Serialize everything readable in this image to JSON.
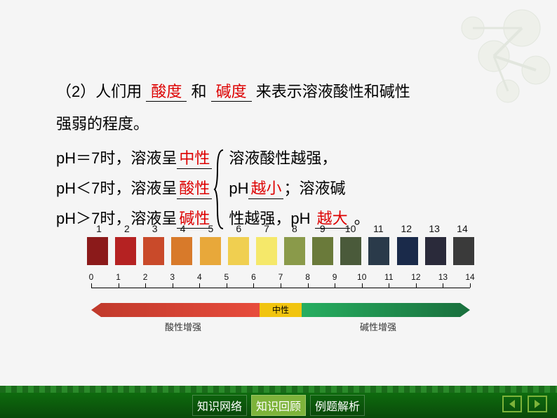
{
  "content": {
    "line1_prefix": "（2）人们用",
    "line1_blank1": "酸度",
    "line1_mid": "和",
    "line1_blank2": "碱度",
    "line1_suffix": "来表示溶液酸性和碱性",
    "line2": "强弱的程度。",
    "ph_rows": [
      {
        "label": "pH＝7时，溶液呈",
        "value": "中性"
      },
      {
        "label": "pH＜7时，溶液呈",
        "value": "酸性"
      },
      {
        "label": "pH＞7时，溶液呈",
        "value": "碱性"
      }
    ],
    "right_text1": "溶液酸性越强，",
    "right_text2a": "pH",
    "right_blank1": "越小",
    "right_text2b": "；溶液碱",
    "right_text3a": "性越强，pH",
    "right_blank2": "越大",
    "right_text3b": "。"
  },
  "chart": {
    "swatch_numbers": [
      "1",
      "2",
      "3",
      "4",
      "5",
      "6",
      "7",
      "8",
      "9",
      "10",
      "11",
      "12",
      "13",
      "14"
    ],
    "swatch_colors": [
      "#8b1a1a",
      "#b52222",
      "#c94a2a",
      "#d87a2a",
      "#e8a83a",
      "#f0cf50",
      "#f5e86a",
      "#8a9a4a",
      "#6a7a3a",
      "#4a5a3a",
      "#2a3a4a",
      "#1a2a4a",
      "#2a2a3a",
      "#3a3a3a"
    ],
    "scale_ticks": [
      "0",
      "1",
      "2",
      "3",
      "4",
      "5",
      "6",
      "7",
      "8",
      "9",
      "10",
      "11",
      "12",
      "13",
      "14"
    ],
    "mid_label": "中性",
    "left_label": "酸性增强",
    "right_label": "碱性增强"
  },
  "footer": {
    "buttons": [
      {
        "label": "知识网络",
        "active": false
      },
      {
        "label": "知识回顾",
        "active": true
      },
      {
        "label": "例题解析",
        "active": false
      }
    ],
    "arrow_color": "#7db33a"
  },
  "deco": {
    "molecule_color": "#e8ede0"
  }
}
